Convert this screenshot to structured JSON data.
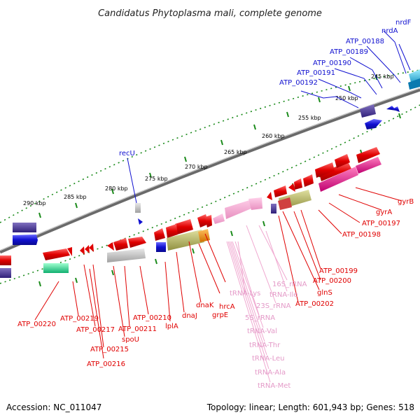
{
  "header": {
    "title": "Candidatus Phytoplasma mali, complete genome"
  },
  "footer": {
    "accession": "Accession: NC_011047",
    "summary": "Topology: linear; Length: 601,943 bp; Genes: 518"
  },
  "colors": {
    "backbone": "#7a7a7a",
    "tick_green": "#1a8a1a",
    "forward_cds": "#e00000",
    "reverse_cds": "#1010d0",
    "rna": "#f0a8d0",
    "pseudo_grey": "#b8b8b8",
    "olive": "#b8b860",
    "orange": "#f09000",
    "teal": "#30e090",
    "cyan": "#20c0e0",
    "indigo": "#4a3a90",
    "magenta": "#e8108a"
  },
  "scale_labels": [
    "245 kbp",
    "250 kbp",
    "255 kbp",
    "260 kbp",
    "265 kbp",
    "270 kbp",
    "275 kbp",
    "280 kbp",
    "285 kbp",
    "290 kbp"
  ],
  "blue_genes": [
    "nrdF",
    "nrdA",
    "ATP_00188",
    "ATP_00189",
    "ATP_00190",
    "ATP_00191",
    "ATP_00192",
    "recU"
  ],
  "red_genes": [
    "gyrB",
    "gyrA",
    "ATP_00197",
    "ATP_00198",
    "ATP_00199",
    "ATP_00200",
    "glnS",
    "ATP_00202",
    "hrcA",
    "grpE",
    "dnaK",
    "dnaJ",
    "lplA",
    "ATP_00210",
    "ATP_00211",
    "spoU",
    "ATP_00215",
    "ATP_00216",
    "ATP_00217",
    "ATP_00219",
    "ATP_00220"
  ],
  "rna_genes": [
    "16S_rRNA",
    "tRNA-Ile",
    "23S_rRNA",
    "tRNA-Lys",
    "5S_rRNA",
    "tRNA-Val",
    "tRNA-Thr",
    "tRNA-Leu",
    "tRNA-Ala",
    "tRNA-Met"
  ]
}
